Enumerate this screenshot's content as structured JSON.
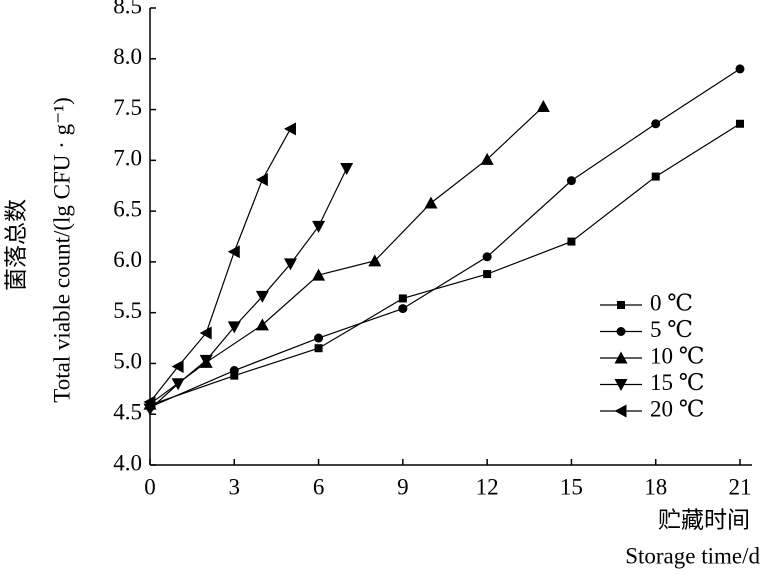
{
  "chart_data": {
    "type": "line",
    "ylabel": [
      "菌落总数",
      "Total viable count/(lg CFU · g⁻¹)"
    ],
    "xlabel": [
      "贮藏时间",
      "Storage time/d"
    ],
    "xlim": [
      0,
      21
    ],
    "xticks": [
      0,
      3,
      6,
      9,
      12,
      15,
      18,
      21
    ],
    "ylim": [
      4.0,
      8.5
    ],
    "yticks": [
      {
        "value": 4.0,
        "label": "4.0"
      },
      4.5,
      {
        "value": 5.0,
        "label": "5.0"
      },
      5.5,
      {
        "value": 6.0,
        "label": "6.0"
      },
      6.5,
      {
        "value": 7.0,
        "label": "7.0"
      },
      7.5,
      {
        "value": 8.0,
        "label": "8.0"
      },
      8.5
    ],
    "legend": "lower-right",
    "series": [
      {
        "name": "0 ℃",
        "color": "#000000",
        "marker": "square",
        "x": [
          0,
          3,
          6,
          9,
          12,
          15,
          18,
          21
        ],
        "values": [
          4.59,
          4.88,
          5.15,
          5.64,
          5.88,
          6.2,
          6.84,
          7.36
        ]
      },
      {
        "name": "5 ℃",
        "color": "#000000",
        "marker": "circle",
        "x": [
          0,
          3,
          6,
          9,
          12,
          15,
          18,
          21
        ],
        "values": [
          4.57,
          4.93,
          5.25,
          5.54,
          6.05,
          6.8,
          7.36,
          7.9
        ]
      },
      {
        "name": "10 ℃",
        "color": "#000000",
        "marker": "triangle-up",
        "x": [
          0,
          2,
          4,
          6,
          8,
          10,
          12,
          14
        ],
        "values": [
          4.6,
          5.01,
          5.38,
          5.87,
          6.01,
          6.58,
          7.01,
          7.53
        ]
      },
      {
        "name": "15 ℃",
        "color": "#000000",
        "marker": "triangle-down",
        "x": [
          0,
          1,
          2,
          3,
          4,
          5,
          6,
          7
        ],
        "values": [
          4.55,
          4.8,
          5.03,
          5.36,
          5.66,
          5.98,
          6.35,
          6.92
        ]
      },
      {
        "name": "20 ℃",
        "color": "#000000",
        "marker": "triangle-left",
        "x": [
          0,
          1,
          2,
          3,
          4,
          5
        ],
        "values": [
          4.62,
          4.97,
          5.3,
          6.1,
          6.81,
          7.31
        ]
      }
    ]
  }
}
